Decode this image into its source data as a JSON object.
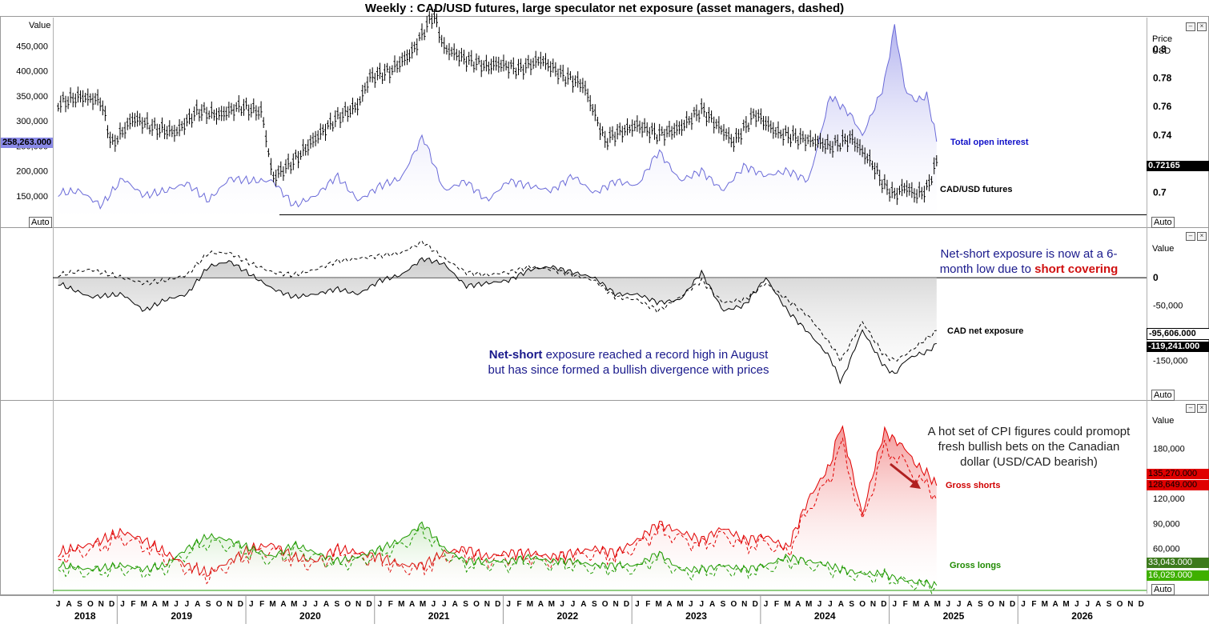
{
  "title": "Weekly : CAD/USD futures, large speculator net exposure (asset managers, dashed)",
  "colors": {
    "price": "#000000",
    "open_interest": "#6a6ad8",
    "net": "#000000",
    "gross_shorts": "#e00000",
    "gross_longs": "#1f9a00",
    "annotation_blue": "#1a1a8c",
    "annotation_red": "#d01010"
  },
  "panel1": {
    "left_axis_title": "Value",
    "right_axis_title_line1": "Price",
    "right_axis_title_line2": "USD",
    "left_ticks": [
      "450,000",
      "400,000",
      "350,000",
      "300,000",
      "250,000",
      "200,000",
      "150,000"
    ],
    "right_ticks": [
      "0.8",
      "0.78",
      "0.76",
      "0.74",
      "0.7"
    ],
    "oi_last_label": "258,263.000",
    "price_last_label": "0.72165",
    "series_label_oi": "Total open interest",
    "series_label_price": "CAD/USD futures",
    "auto_left": "Auto",
    "auto_right": "Auto"
  },
  "panel2": {
    "right_axis_title": "Value",
    "right_ticks": [
      "0",
      "-50,000",
      "-150,000"
    ],
    "label_net": "CAD net exposure",
    "last_label_1": "-95,606.000",
    "last_label_2": "-119,241.000",
    "annotation_top_1": "Net-short exposure is now at a 6-",
    "annotation_top_2": "month low due to",
    "annotation_top_red": "short covering",
    "annotation_bottom_bold": "Net-short",
    "annotation_bottom_1": "exposure reached a record high in August",
    "annotation_bottom_2": "but has since formed a bullish divergence with prices",
    "auto": "Auto"
  },
  "panel3": {
    "right_axis_title": "Value",
    "right_ticks": [
      "180,000",
      "150,000",
      "120,000",
      "90,000",
      "60,000"
    ],
    "label_shorts": "Gross shorts",
    "label_longs": "Gross longs",
    "shorts_label_1": "135,270.000",
    "shorts_label_2": "128,649.000",
    "longs_label_1": "33,043.000",
    "longs_label_2": "16,029.000",
    "annotation_1": "A hot set of CPI figures could promopt",
    "annotation_2": "fresh bullish bets on the Canadian",
    "annotation_3": "dollar (USD/CAD bearish)",
    "auto": "Auto"
  },
  "x_axis": {
    "month_letters": [
      "J",
      "F",
      "M",
      "A",
      "M",
      "J",
      "J",
      "A",
      "S",
      "O",
      "N",
      "D"
    ],
    "years": [
      "2018",
      "2019",
      "2020",
      "2021",
      "2022",
      "2023",
      "2024",
      "2025",
      "2026"
    ]
  },
  "chart_data": [
    {
      "type": "line",
      "name": "CAD/USD futures (weekly bars) with total open interest",
      "title": "Weekly : CAD/USD futures, large speculator net exposure (asset managers, dashed)",
      "x_range": [
        "2018-07",
        "2026-12"
      ],
      "ylim_price": [
        0.68,
        0.82
      ],
      "ylim_open_interest": [
        100000,
        500000
      ],
      "series": [
        {
          "name": "CAD/USD futures",
          "x": [
            "2018-07",
            "2018-09",
            "2018-11",
            "2018-12",
            "2019-02",
            "2019-04",
            "2019-06",
            "2019-08",
            "2019-10",
            "2019-12",
            "2020-02",
            "2020-03",
            "2020-05",
            "2020-07",
            "2020-09",
            "2020-11",
            "2020-12",
            "2021-02",
            "2021-04",
            "2021-06",
            "2021-07",
            "2021-09",
            "2021-11",
            "2021-12",
            "2022-02",
            "2022-04",
            "2022-06",
            "2022-08",
            "2022-10",
            "2022-11",
            "2023-01",
            "2023-03",
            "2023-05",
            "2023-07",
            "2023-09",
            "2023-10",
            "2023-12",
            "2024-02",
            "2024-04",
            "2024-06",
            "2024-07",
            "2024-09",
            "2024-11",
            "2024-12",
            "2025-01",
            "2025-02",
            "2025-03",
            "2025-04",
            "2025-05"
          ],
          "values": [
            0.762,
            0.767,
            0.764,
            0.733,
            0.752,
            0.745,
            0.742,
            0.757,
            0.754,
            0.76,
            0.756,
            0.71,
            0.722,
            0.738,
            0.752,
            0.761,
            0.78,
            0.785,
            0.798,
            0.825,
            0.801,
            0.793,
            0.788,
            0.79,
            0.786,
            0.793,
            0.782,
            0.775,
            0.736,
            0.741,
            0.747,
            0.74,
            0.745,
            0.758,
            0.743,
            0.735,
            0.755,
            0.742,
            0.738,
            0.735,
            0.732,
            0.738,
            0.719,
            0.705,
            0.698,
            0.704,
            0.698,
            0.702,
            0.722
          ]
        },
        {
          "name": "Total open interest",
          "x": [
            "2018-07",
            "2018-09",
            "2018-11",
            "2019-01",
            "2019-03",
            "2019-05",
            "2019-07",
            "2019-09",
            "2019-11",
            "2020-01",
            "2020-03",
            "2020-05",
            "2020-07",
            "2020-09",
            "2020-11",
            "2021-01",
            "2021-03",
            "2021-05",
            "2021-07",
            "2021-09",
            "2021-11",
            "2022-01",
            "2022-03",
            "2022-05",
            "2022-07",
            "2022-09",
            "2022-11",
            "2023-01",
            "2023-03",
            "2023-05",
            "2023-07",
            "2023-09",
            "2023-11",
            "2024-01",
            "2024-03",
            "2024-05",
            "2024-07",
            "2024-09",
            "2024-10",
            "2024-12",
            "2025-01",
            "2025-02",
            "2025-03",
            "2025-04",
            "2025-05"
          ],
          "values": [
            155000,
            160000,
            130000,
            185000,
            150000,
            160000,
            175000,
            140000,
            185000,
            180000,
            180000,
            130000,
            150000,
            190000,
            140000,
            170000,
            185000,
            270000,
            160000,
            180000,
            140000,
            180000,
            170000,
            160000,
            190000,
            155000,
            180000,
            170000,
            240000,
            180000,
            200000,
            160000,
            210000,
            190000,
            200000,
            180000,
            350000,
            310000,
            270000,
            370000,
            490000,
            360000,
            340000,
            350000,
            258263
          ]
        }
      ]
    },
    {
      "type": "area",
      "name": "CAD net exposure",
      "ylim": [
        -210000,
        80000
      ],
      "series": [
        {
          "name": "CAD net exposure",
          "x": [
            "2018-07",
            "2018-10",
            "2019-01",
            "2019-03",
            "2019-05",
            "2019-07",
            "2019-09",
            "2019-11",
            "2020-01",
            "2020-03",
            "2020-05",
            "2020-07",
            "2020-09",
            "2020-11",
            "2021-01",
            "2021-03",
            "2021-05",
            "2021-07",
            "2021-09",
            "2021-11",
            "2022-01",
            "2022-03",
            "2022-05",
            "2022-07",
            "2022-09",
            "2022-11",
            "2023-01",
            "2023-03",
            "2023-05",
            "2023-07",
            "2023-09",
            "2023-11",
            "2024-01",
            "2024-03",
            "2024-05",
            "2024-07",
            "2024-08",
            "2024-10",
            "2024-12",
            "2025-01",
            "2025-02",
            "2025-03",
            "2025-04",
            "2025-05"
          ],
          "values": [
            -10000,
            -35000,
            -30000,
            -60000,
            -40000,
            -30000,
            20000,
            30000,
            5000,
            -20000,
            -35000,
            -30000,
            -20000,
            -30000,
            -5000,
            5000,
            35000,
            25000,
            -15000,
            -10000,
            -5000,
            15000,
            20000,
            10000,
            0,
            -30000,
            -30000,
            -45000,
            -40000,
            10000,
            -60000,
            -50000,
            0,
            -60000,
            -100000,
            -145000,
            -190000,
            -95000,
            -160000,
            -175000,
            -150000,
            -140000,
            -135000,
            -119241
          ]
        },
        {
          "name": "Asset managers net exposure (dashed)",
          "x": [
            "2018-07",
            "2018-10",
            "2019-01",
            "2019-03",
            "2019-05",
            "2019-07",
            "2019-09",
            "2019-11",
            "2020-01",
            "2020-03",
            "2020-05",
            "2020-07",
            "2020-09",
            "2020-11",
            "2021-01",
            "2021-03",
            "2021-05",
            "2021-07",
            "2021-09",
            "2021-11",
            "2022-01",
            "2022-03",
            "2022-05",
            "2022-07",
            "2022-09",
            "2022-11",
            "2023-01",
            "2023-03",
            "2023-05",
            "2023-07",
            "2023-09",
            "2023-11",
            "2024-01",
            "2024-03",
            "2024-05",
            "2024-07",
            "2024-08",
            "2024-10",
            "2024-12",
            "2025-01",
            "2025-02",
            "2025-03",
            "2025-04",
            "2025-05"
          ],
          "values": [
            5000,
            15000,
            0,
            -10000,
            -5000,
            5000,
            45000,
            45000,
            25000,
            10000,
            5000,
            15000,
            30000,
            35000,
            40000,
            45000,
            65000,
            35000,
            10000,
            5000,
            10000,
            20000,
            15000,
            5000,
            -5000,
            -35000,
            -40000,
            -60000,
            -35000,
            -5000,
            -45000,
            -40000,
            -10000,
            -40000,
            -70000,
            -120000,
            -150000,
            -80000,
            -140000,
            -150000,
            -140000,
            -125000,
            -110000,
            -95606
          ]
        }
      ]
    },
    {
      "type": "area",
      "name": "Gross positions",
      "ylim": [
        10000,
        230000
      ],
      "series": [
        {
          "name": "Gross shorts",
          "x": [
            "2018-07",
            "2018-10",
            "2019-01",
            "2019-03",
            "2019-05",
            "2019-07",
            "2019-09",
            "2019-11",
            "2020-01",
            "2020-03",
            "2020-05",
            "2020-07",
            "2020-09",
            "2020-11",
            "2021-01",
            "2021-03",
            "2021-05",
            "2021-07",
            "2021-09",
            "2021-11",
            "2022-01",
            "2022-03",
            "2022-05",
            "2022-07",
            "2022-09",
            "2022-11",
            "2023-01",
            "2023-03",
            "2023-05",
            "2023-07",
            "2023-09",
            "2023-11",
            "2024-01",
            "2024-03",
            "2024-05",
            "2024-07",
            "2024-08",
            "2024-10",
            "2024-12",
            "2025-01",
            "2025-02",
            "2025-03",
            "2025-04",
            "2025-05"
          ],
          "values": [
            55000,
            65000,
            80000,
            70000,
            55000,
            40000,
            30000,
            45000,
            60000,
            65000,
            50000,
            45000,
            60000,
            55000,
            50000,
            40000,
            40000,
            55000,
            60000,
            50000,
            55000,
            55000,
            50000,
            55000,
            60000,
            55000,
            70000,
            90000,
            80000,
            70000,
            85000,
            70000,
            75000,
            60000,
            120000,
            160000,
            210000,
            100000,
            200000,
            190000,
            180000,
            160000,
            150000,
            135270
          ]
        },
        {
          "name": "Gross longs",
          "x": [
            "2018-07",
            "2018-10",
            "2019-01",
            "2019-03",
            "2019-05",
            "2019-07",
            "2019-09",
            "2019-11",
            "2020-01",
            "2020-03",
            "2020-05",
            "2020-07",
            "2020-09",
            "2020-11",
            "2021-01",
            "2021-03",
            "2021-05",
            "2021-07",
            "2021-09",
            "2021-11",
            "2022-01",
            "2022-03",
            "2022-05",
            "2022-07",
            "2022-09",
            "2022-11",
            "2023-01",
            "2023-03",
            "2023-05",
            "2023-07",
            "2023-09",
            "2023-11",
            "2024-01",
            "2024-03",
            "2024-05",
            "2024-07",
            "2024-08",
            "2024-10",
            "2024-12",
            "2025-01",
            "2025-02",
            "2025-03",
            "2025-04",
            "2025-05"
          ],
          "values": [
            40000,
            35000,
            40000,
            35000,
            40000,
            60000,
            75000,
            70000,
            60000,
            50000,
            65000,
            55000,
            45000,
            50000,
            60000,
            70000,
            90000,
            60000,
            45000,
            45000,
            45000,
            50000,
            45000,
            45000,
            40000,
            40000,
            40000,
            55000,
            35000,
            35000,
            40000,
            35000,
            40000,
            50000,
            45000,
            40000,
            35000,
            30000,
            30000,
            25000,
            22000,
            20000,
            18000,
            16029
          ]
        }
      ]
    }
  ]
}
